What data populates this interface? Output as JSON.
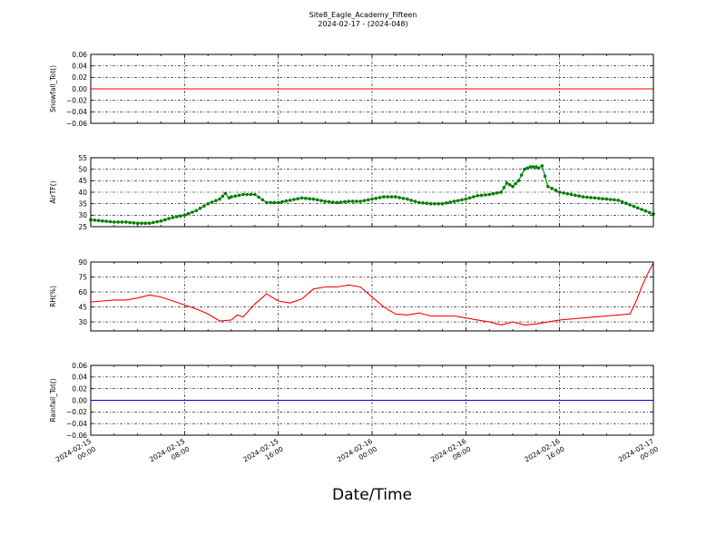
{
  "title": "Site8_Eagle_Academy_Fifteen",
  "subtitle": "2024-02-17 - (2024-048)",
  "xlabel": "Date/Time",
  "x_tick_labels": [
    [
      "2024-02-15",
      "00:00"
    ],
    [
      "2024-02-15",
      "08:00"
    ],
    [
      "2024-02-15",
      "16:00"
    ],
    [
      "2024-02-16",
      "00:00"
    ],
    [
      "2024-02-16",
      "08:00"
    ],
    [
      "2024-02-16",
      "16:00"
    ],
    [
      "2024-02-17",
      "00:00"
    ]
  ],
  "colors": {
    "snow": "#ff0000",
    "air": "#008000",
    "rh": "#ff0000",
    "rain": "#0000ff"
  },
  "chart_data": [
    {
      "type": "line",
      "ylabel": "Snowfall_Tot()",
      "ylim": [
        -0.06,
        0.06
      ],
      "yticks": [
        0.06,
        0.04,
        0.02,
        0.0,
        -0.02,
        -0.04,
        -0.06
      ],
      "ytick_labels": [
        "0.06",
        "0.04",
        "0.02",
        "0.00",
        "−0.02",
        "−0.04",
        "−0.06"
      ],
      "grid": true,
      "color": "#ff0000",
      "x_hours": [
        0,
        48
      ],
      "values": [
        0,
        0
      ]
    },
    {
      "type": "line",
      "ylabel": "AirTF()",
      "ylim": [
        25,
        55
      ],
      "yticks": [
        55,
        50,
        45,
        40,
        35,
        30,
        25
      ],
      "ytick_labels": [
        "55",
        "50",
        "45",
        "40",
        "35",
        "30",
        "25"
      ],
      "grid": true,
      "color": "#008000",
      "markers": true,
      "x_hours": [
        0,
        1,
        2,
        3,
        4,
        5,
        6,
        7,
        8,
        9,
        10,
        11,
        11.5,
        11.8,
        12,
        13,
        14,
        15,
        16,
        17,
        18,
        19,
        20,
        21,
        22,
        23,
        24,
        25,
        26,
        27,
        28,
        29,
        30,
        31,
        32,
        33,
        34,
        35,
        35.5,
        36,
        36.5,
        37,
        37.5,
        38,
        38.2,
        38.5,
        39,
        40,
        41,
        42,
        43,
        44,
        45,
        46,
        47,
        48
      ],
      "values": [
        28,
        27.5,
        27,
        27,
        26.5,
        26.5,
        27.5,
        29,
        30,
        32,
        35,
        37,
        39.5,
        37.5,
        38,
        39,
        39,
        35.5,
        35.5,
        36.5,
        37.5,
        37,
        36,
        35.5,
        36,
        36,
        37,
        38,
        38,
        37,
        35.5,
        35,
        35,
        36,
        37,
        38.5,
        39,
        40,
        44,
        42.5,
        45,
        50,
        51,
        51,
        50.5,
        51.5,
        42.5,
        40,
        39,
        38,
        37.5,
        37,
        36.5,
        34.5,
        32.5,
        30.5
      ]
    },
    {
      "type": "line",
      "ylabel": "RH(%)",
      "ylim": [
        21,
        90
      ],
      "yticks": [
        90,
        75,
        60,
        45,
        30
      ],
      "ytick_labels": [
        "90",
        "75",
        "60",
        "45",
        "30"
      ],
      "grid": true,
      "color": "#ff0000",
      "x_hours": [
        0,
        1,
        2,
        3,
        4,
        5,
        6,
        7,
        8,
        9,
        10,
        11,
        12,
        12.5,
        13,
        14,
        15,
        16,
        17,
        18,
        19,
        20,
        21,
        22,
        23,
        24,
        25,
        26,
        27,
        28,
        29,
        30,
        31,
        32,
        33,
        34,
        35,
        36,
        37,
        38,
        39,
        40,
        41,
        42,
        43,
        44,
        45,
        46,
        46.5,
        47,
        47.5,
        48
      ],
      "values": [
        50,
        51,
        52,
        52,
        54,
        57,
        55,
        51,
        47,
        43,
        38,
        31,
        32,
        37,
        35,
        48,
        58,
        51,
        49,
        53,
        63,
        65,
        65,
        67,
        65,
        55,
        45,
        38,
        37,
        39,
        36,
        36,
        36,
        34,
        32,
        30,
        27,
        30,
        27,
        28,
        30,
        32,
        33,
        34,
        35,
        36,
        37,
        38,
        50,
        65,
        78,
        89
      ]
    },
    {
      "type": "line",
      "ylabel": "Rainfall_Tot()",
      "ylim": [
        -0.06,
        0.06
      ],
      "yticks": [
        0.06,
        0.04,
        0.02,
        0.0,
        -0.02,
        -0.04,
        -0.06
      ],
      "ytick_labels": [
        "0.06",
        "0.04",
        "0.02",
        "0.00",
        "−0.02",
        "−0.04",
        "−0.06"
      ],
      "grid": true,
      "color": "#0000ff",
      "x_hours": [
        0,
        48
      ],
      "values": [
        0,
        0
      ]
    }
  ]
}
